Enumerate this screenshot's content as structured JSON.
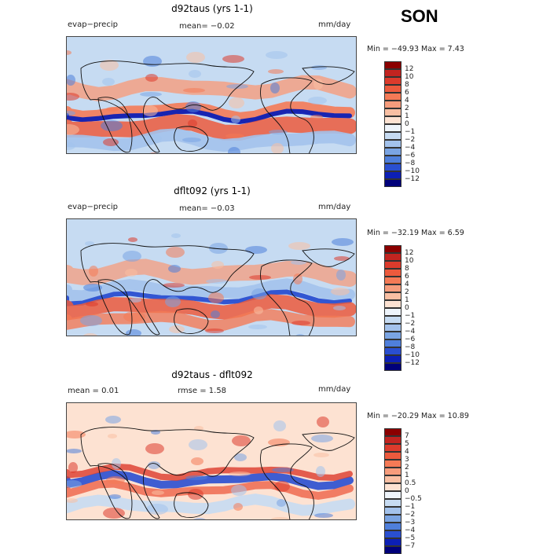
{
  "season": "SON",
  "panels": [
    {
      "title": "d92taus (yrs 1-1)",
      "left_label": "evap−precip",
      "center_label": "mean=   −0.02",
      "right_label": "mm/day",
      "min": "−49.93",
      "max": "7.43",
      "minmax_text": "Min = −49.93  Max =     7.43",
      "colorbar_ticks": [
        "12",
        "10",
        "8",
        "6",
        "4",
        "2",
        "1",
        "0",
        "−1",
        "−2",
        "−4",
        "−6",
        "−8",
        "−10",
        "−12"
      ],
      "colorbar_colors": [
        "#8b0000",
        "#c22420",
        "#dc3b2c",
        "#ec5a3d",
        "#f47a56",
        "#f69c7c",
        "#f9bfa3",
        "#fde2d2",
        "#eef4fb",
        "#c6dbf2",
        "#a3c2ec",
        "#7aa4e3",
        "#4f7fdb",
        "#2a4fd0",
        "#0c1fb5",
        "#00007a"
      ],
      "type": "contour-map"
    },
    {
      "title": "dflt092 (yrs 1-1)",
      "left_label": "evap−precip",
      "center_label": "mean=   −0.03",
      "right_label": "mm/day",
      "min": "−32.19",
      "max": "6.59",
      "minmax_text": "Min = −32.19  Max =     6.59",
      "colorbar_ticks": [
        "12",
        "10",
        "8",
        "6",
        "4",
        "2",
        "1",
        "0",
        "−1",
        "−2",
        "−4",
        "−6",
        "−8",
        "−10",
        "−12"
      ],
      "colorbar_colors": [
        "#8b0000",
        "#c22420",
        "#dc3b2c",
        "#ec5a3d",
        "#f47a56",
        "#f69c7c",
        "#f9bfa3",
        "#fde2d2",
        "#eef4fb",
        "#c6dbf2",
        "#a3c2ec",
        "#7aa4e3",
        "#4f7fdb",
        "#2a4fd0",
        "#0c1fb5",
        "#00007a"
      ],
      "type": "contour-map"
    },
    {
      "title": "d92taus - dflt092",
      "left_label": "mean =     0.01",
      "center_label": "rmse =     1.58",
      "right_label": "mm/day",
      "min": "−20.29",
      "max": "10.89",
      "minmax_text": "Min = −20.29  Max =   10.89",
      "colorbar_ticks": [
        "7",
        "5",
        "4",
        "3",
        "2",
        "1",
        "0.5",
        "0",
        "−0.5",
        "−1",
        "−2",
        "−3",
        "−4",
        "−5",
        "−7"
      ],
      "colorbar_colors": [
        "#8b0000",
        "#c22420",
        "#dc3b2c",
        "#ec5a3d",
        "#f47a56",
        "#f69c7c",
        "#f9bfa3",
        "#fde2d2",
        "#eef4fb",
        "#c6dbf2",
        "#a3c2ec",
        "#7aa4e3",
        "#4f7fdb",
        "#2a4fd0",
        "#0c1fb5",
        "#00007a"
      ],
      "type": "contour-map"
    }
  ],
  "chart_data": [
    {
      "type": "heatmap",
      "title": "d92taus (yrs 1-1)",
      "variable": "evap−precip",
      "units": "mm/day",
      "mean": -0.02,
      "min": -49.93,
      "max": 7.43,
      "levels": [
        12,
        10,
        8,
        6,
        4,
        2,
        1,
        0,
        -1,
        -2,
        -4,
        -6,
        -8,
        -10,
        -12
      ]
    },
    {
      "type": "heatmap",
      "title": "dflt092 (yrs 1-1)",
      "variable": "evap−precip",
      "units": "mm/day",
      "mean": -0.03,
      "min": -32.19,
      "max": 6.59,
      "levels": [
        12,
        10,
        8,
        6,
        4,
        2,
        1,
        0,
        -1,
        -2,
        -4,
        -6,
        -8,
        -10,
        -12
      ]
    },
    {
      "type": "heatmap",
      "title": "d92taus - dflt092",
      "units": "mm/day",
      "mean": 0.01,
      "rmse": 1.58,
      "min": -20.29,
      "max": 10.89,
      "levels": [
        7,
        5,
        4,
        3,
        2,
        1,
        0.5,
        0,
        -0.5,
        -1,
        -2,
        -3,
        -4,
        -5,
        -7
      ]
    }
  ]
}
